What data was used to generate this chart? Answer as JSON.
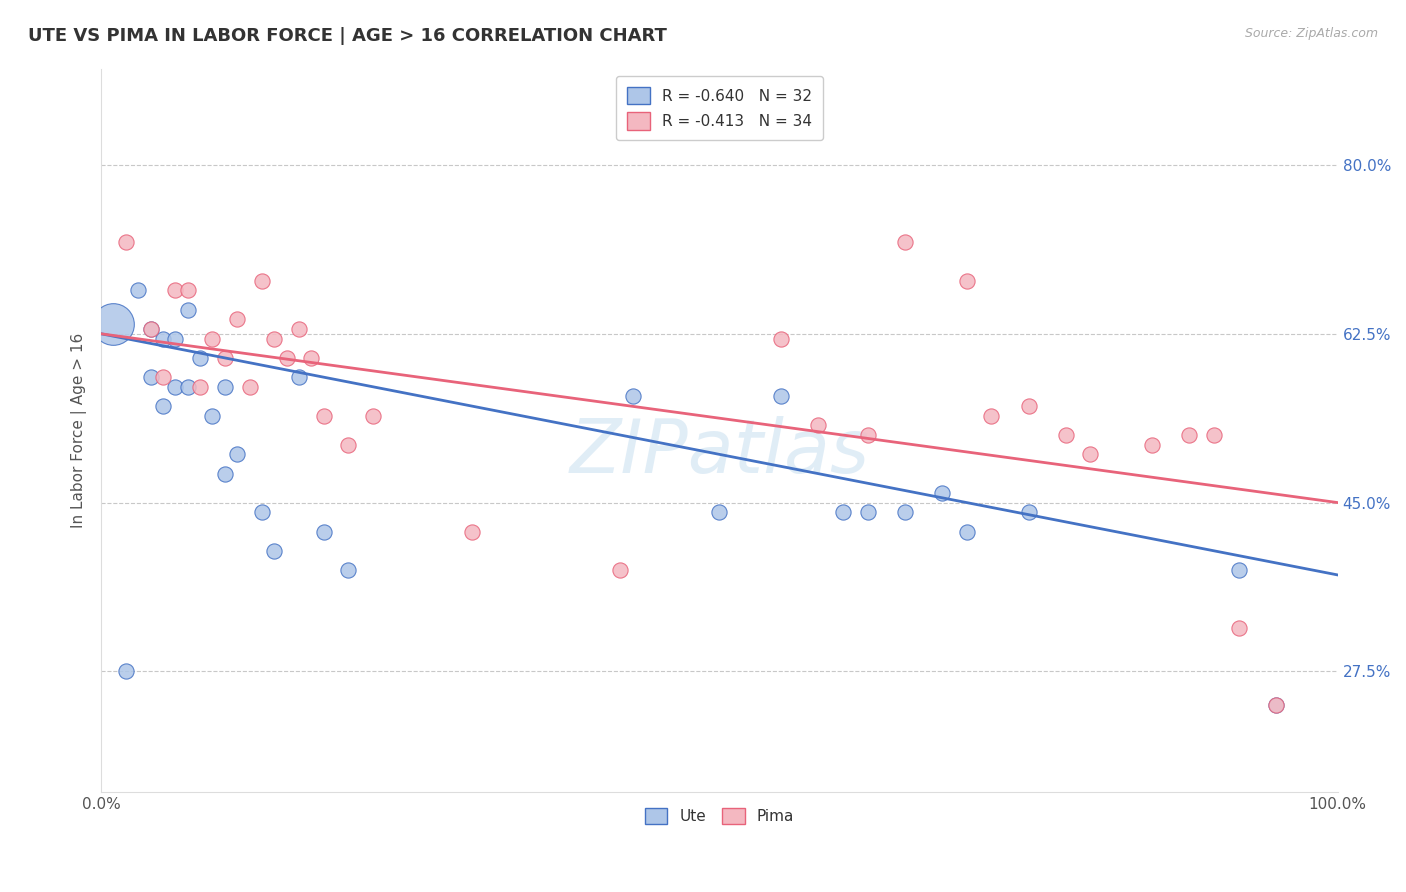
{
  "title": "UTE VS PIMA IN LABOR FORCE | AGE > 16 CORRELATION CHART",
  "ylabel": "In Labor Force | Age > 16",
  "source_text": "Source: ZipAtlas.com",
  "legend_entries": [
    {
      "label": "R = -0.640   N = 32"
    },
    {
      "label": "R = -0.413   N = 34"
    }
  ],
  "xlim": [
    0.0,
    1.0
  ],
  "ylim": [
    0.15,
    0.9
  ],
  "yticks": [
    0.275,
    0.45,
    0.625,
    0.8
  ],
  "ytick_labels": [
    "27.5%",
    "45.0%",
    "62.5%",
    "80.0%"
  ],
  "xticks": [
    0.0,
    1.0
  ],
  "xtick_labels": [
    "0.0%",
    "100.0%"
  ],
  "background_color": "#ffffff",
  "grid_color": "#c8c8c8",
  "title_color": "#333333",
  "watermark": "ZIPatlas",
  "ute_line_color": "#4472c4",
  "pima_line_color": "#e8637a",
  "ute_dot_color": "#aec6e8",
  "pima_dot_color": "#f4b8c1",
  "ute_dot_edge_color": "#4472c4",
  "pima_dot_edge_color": "#e8637a",
  "ytick_color": "#4472c4",
  "xtick_color": "#555555",
  "ute_scatter_x": [
    0.01,
    0.02,
    0.03,
    0.04,
    0.04,
    0.05,
    0.05,
    0.06,
    0.06,
    0.07,
    0.07,
    0.08,
    0.09,
    0.1,
    0.1,
    0.11,
    0.13,
    0.14,
    0.16,
    0.18,
    0.2,
    0.43,
    0.5,
    0.55,
    0.6,
    0.62,
    0.65,
    0.68,
    0.7,
    0.75,
    0.92,
    0.95
  ],
  "ute_scatter_y": [
    0.635,
    0.275,
    0.67,
    0.63,
    0.58,
    0.62,
    0.55,
    0.62,
    0.57,
    0.65,
    0.57,
    0.6,
    0.54,
    0.48,
    0.57,
    0.5,
    0.44,
    0.4,
    0.58,
    0.42,
    0.38,
    0.56,
    0.44,
    0.56,
    0.44,
    0.44,
    0.44,
    0.46,
    0.42,
    0.44,
    0.38,
    0.24
  ],
  "ute_dot_sizes": [
    900,
    120,
    120,
    120,
    120,
    120,
    120,
    120,
    120,
    120,
    120,
    120,
    120,
    120,
    120,
    120,
    120,
    120,
    120,
    120,
    120,
    120,
    120,
    120,
    120,
    120,
    120,
    120,
    120,
    120,
    120,
    120
  ],
  "pima_scatter_x": [
    0.02,
    0.04,
    0.05,
    0.06,
    0.07,
    0.08,
    0.09,
    0.1,
    0.11,
    0.12,
    0.13,
    0.14,
    0.15,
    0.16,
    0.17,
    0.18,
    0.2,
    0.22,
    0.3,
    0.42,
    0.55,
    0.58,
    0.62,
    0.65,
    0.7,
    0.72,
    0.75,
    0.78,
    0.8,
    0.85,
    0.88,
    0.9,
    0.92,
    0.95
  ],
  "pima_scatter_y": [
    0.72,
    0.63,
    0.58,
    0.67,
    0.67,
    0.57,
    0.62,
    0.6,
    0.64,
    0.57,
    0.68,
    0.62,
    0.6,
    0.63,
    0.6,
    0.54,
    0.51,
    0.54,
    0.42,
    0.38,
    0.62,
    0.53,
    0.52,
    0.72,
    0.68,
    0.54,
    0.55,
    0.52,
    0.5,
    0.51,
    0.52,
    0.52,
    0.32,
    0.24
  ],
  "pima_dot_sizes": [
    120,
    120,
    120,
    120,
    120,
    120,
    120,
    120,
    120,
    120,
    120,
    120,
    120,
    120,
    120,
    120,
    120,
    120,
    120,
    120,
    120,
    120,
    120,
    120,
    120,
    120,
    120,
    120,
    120,
    120,
    120,
    120,
    120,
    120
  ],
  "ute_line_intercept": 0.625,
  "ute_line_slope": -0.25,
  "pima_line_intercept": 0.625,
  "pima_line_slope": -0.175
}
